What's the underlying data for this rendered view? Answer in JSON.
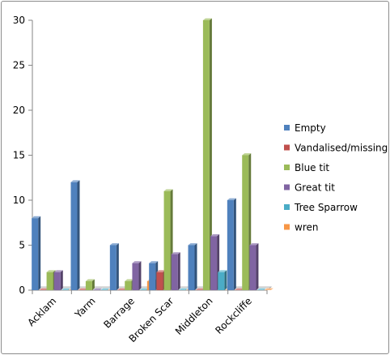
{
  "chart_data": {
    "type": "bar",
    "style": "3d-clustered-column",
    "categories": [
      "Acklam",
      "Yarm",
      "Barrage",
      "Broken Scar",
      "Middleton",
      "Rockcliffe"
    ],
    "ylim": [
      0,
      30
    ],
    "yticks": [
      0,
      5,
      10,
      15,
      20,
      25,
      30
    ],
    "grid": false,
    "legend_position": "right",
    "series": [
      {
        "name": "Empty",
        "color": "#4F81BD",
        "values": [
          8,
          12,
          5,
          3,
          5,
          10
        ]
      },
      {
        "name": "Vandalised/missing",
        "color": "#C0504D",
        "values": [
          0,
          0,
          0,
          2,
          0,
          0
        ]
      },
      {
        "name": "Blue tit",
        "color": "#9BBB59",
        "values": [
          2,
          1,
          1,
          11,
          30,
          15
        ]
      },
      {
        "name": "Great tit",
        "color": "#8064A2",
        "values": [
          2,
          0,
          3,
          4,
          6,
          5
        ]
      },
      {
        "name": "Tree Sparrow",
        "color": "#4BACC6",
        "values": [
          0,
          0,
          0,
          0,
          2,
          0
        ]
      },
      {
        "name": "wren",
        "color": "#F79646",
        "values": [
          0,
          0,
          1,
          0,
          0,
          0
        ]
      }
    ]
  }
}
